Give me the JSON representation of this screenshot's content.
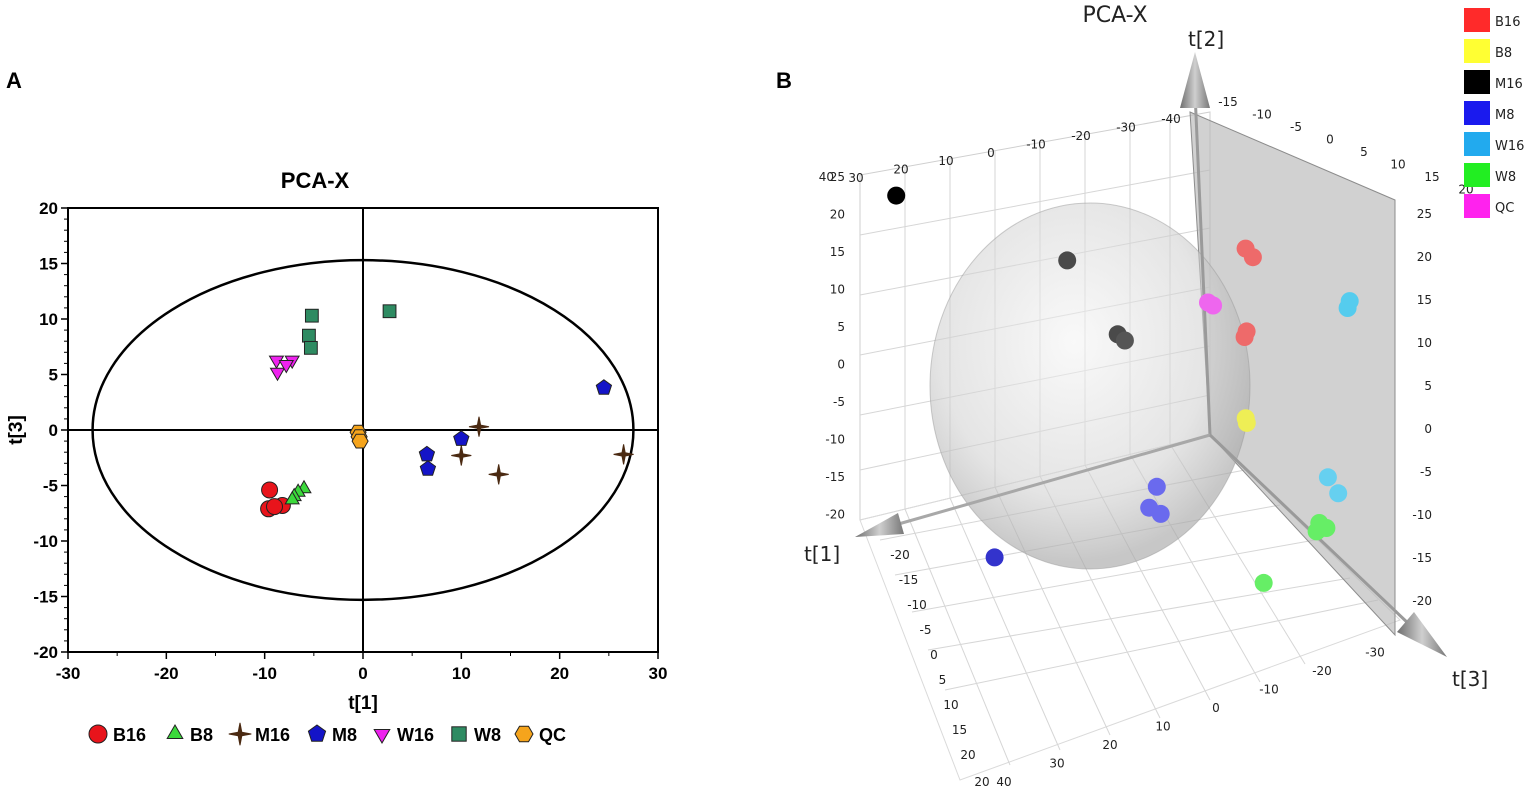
{
  "panels": {
    "a": {
      "letter": "A"
    },
    "b": {
      "letter": "B"
    }
  },
  "chart_data": [
    {
      "type": "scatter",
      "title": "PCA-X",
      "xlabel": "t[1]",
      "ylabel": "t[3]",
      "xlim": [
        -30,
        30
      ],
      "ylim": [
        -20,
        20
      ],
      "xticks": [
        "-30",
        "-20",
        "-10",
        "0",
        "10",
        "20",
        "30"
      ],
      "yticks": [
        "20",
        "15",
        "10",
        "5",
        "0",
        "-5",
        "-10",
        "-15",
        "-20"
      ],
      "ellipse": {
        "rx": 27.5,
        "ry": 15.3
      },
      "series": [
        {
          "name": "B16",
          "marker": "circle",
          "color": "#e8141b",
          "points": [
            [
              -9.5,
              -5.4
            ],
            [
              -8.2,
              -6.8
            ],
            [
              -9.6,
              -7.1
            ],
            [
              -9.0,
              -6.9
            ]
          ]
        },
        {
          "name": "B8",
          "marker": "triangle-up",
          "color": "#3bd93b",
          "points": [
            [
              -6.0,
              -5.3
            ],
            [
              -6.6,
              -5.6
            ],
            [
              -7.0,
              -6.0
            ],
            [
              -7.2,
              -6.3
            ]
          ]
        },
        {
          "name": "M16",
          "marker": "star4",
          "color": "#4b2a12",
          "points": [
            [
              11.8,
              0.3
            ],
            [
              10.0,
              -2.3
            ],
            [
              13.8,
              -4.0
            ],
            [
              26.5,
              -2.2
            ]
          ]
        },
        {
          "name": "M8",
          "marker": "pentagon",
          "color": "#1414c8",
          "points": [
            [
              24.5,
              3.8
            ],
            [
              10.0,
              -0.8
            ],
            [
              6.5,
              -2.2
            ],
            [
              6.6,
              -3.5
            ]
          ]
        },
        {
          "name": "W16",
          "marker": "triangle-down",
          "color": "#ee22ee",
          "points": [
            [
              -7.2,
              6.3
            ],
            [
              -8.8,
              6.3
            ],
            [
              -8.7,
              5.2
            ],
            [
              -7.8,
              5.9
            ]
          ]
        },
        {
          "name": "W8",
          "marker": "square",
          "color": "#2e8b62",
          "points": [
            [
              -5.2,
              10.3
            ],
            [
              -5.5,
              8.5
            ],
            [
              -5.3,
              7.4
            ],
            [
              2.7,
              10.7
            ]
          ]
        },
        {
          "name": "QC",
          "marker": "hexagon",
          "color": "#f5a41c",
          "points": [
            [
              -0.5,
              -0.2
            ],
            [
              -0.4,
              -0.6
            ],
            [
              -0.3,
              -1.0
            ]
          ]
        }
      ]
    },
    {
      "type": "scatter",
      "title": "PCA-X",
      "axis_labels": [
        "t[1]",
        "t[2]",
        "t[3]"
      ],
      "t2_top_ticks": [
        "30",
        "20",
        "10",
        "0",
        "-10",
        "-20",
        "-30",
        "-40"
      ],
      "t3_top_ticks": [
        "-15",
        "-10",
        "-5",
        "0",
        "5",
        "10",
        "15",
        "20"
      ],
      "t2_right_ticks": [
        "25",
        "20",
        "15",
        "10",
        "5",
        "0",
        "-5",
        "-10",
        "-15",
        "-20"
      ],
      "t2_left_ticks": [
        "25",
        "20",
        "15",
        "10",
        "5",
        "0",
        "-5",
        "-10",
        "-15",
        "-20"
      ],
      "t1_left_ticks": [
        "-20",
        "-15",
        "-10",
        "-5",
        "0",
        "5",
        "10",
        "15",
        "20"
      ],
      "t1_bottom_ticks": [
        "40",
        "30",
        "20",
        "10",
        "0",
        "-10",
        "-20",
        "-30"
      ],
      "left_top_extra": "40",
      "bottom_extra": "20",
      "legend": [
        {
          "name": "B16",
          "color": "#ff2a2a"
        },
        {
          "name": "B8",
          "color": "#ffff33"
        },
        {
          "name": "M16",
          "color": "#000000"
        },
        {
          "name": "M8",
          "color": "#1a1aee"
        },
        {
          "name": "W16",
          "color": "#22aaee"
        },
        {
          "name": "W8",
          "color": "#22ee22"
        },
        {
          "name": "QC",
          "color": "#ff22ee"
        }
      ],
      "points": [
        {
          "group": "M16",
          "color": "#000000",
          "t1": 21,
          "t2": 14,
          "t3": -24
        },
        {
          "group": "M16",
          "color": "#4a4a4a",
          "t1": 5,
          "t2": 8,
          "t3": -18
        },
        {
          "group": "M16",
          "color": "#4a4a4a",
          "t1": 2,
          "t2": 3,
          "t3": -14
        },
        {
          "group": "M16",
          "color": "#555555",
          "t1": 1.5,
          "t2": 2.6,
          "t3": -13.5
        },
        {
          "group": "B16",
          "color": "#ee6a6a",
          "t1": -8,
          "t2": 12,
          "t3": -4
        },
        {
          "group": "B16",
          "color": "#ee6a6a",
          "t1": -8.5,
          "t2": 11.4,
          "t3": -3.5
        },
        {
          "group": "B16",
          "color": "#ee6a6a",
          "t1": -6,
          "t2": 6,
          "t3": -2
        },
        {
          "group": "B16",
          "color": "#ee6a6a",
          "t1": -6.4,
          "t2": 6.3,
          "t3": -2.2
        },
        {
          "group": "QC",
          "color": "#ee66ee",
          "t1": -4,
          "t2": 7.8,
          "t3": -5.5
        },
        {
          "group": "QC",
          "color": "#ee66ee",
          "t1": -4.4,
          "t2": 7.6,
          "t3": -5.2
        },
        {
          "group": "W16",
          "color": "#55ccee",
          "t1": -16,
          "t2": 8,
          "t3": 2
        },
        {
          "group": "W16",
          "color": "#55ccee",
          "t1": -16.3,
          "t2": 8.5,
          "t3": 2
        },
        {
          "group": "W16",
          "color": "#66d0f0",
          "t1": -10,
          "t2": -3,
          "t3": 6
        },
        {
          "group": "W16",
          "color": "#66d0f0",
          "t1": -10.5,
          "t2": -4,
          "t3": 7
        },
        {
          "group": "B8",
          "color": "#eeee55",
          "t1": -6,
          "t2": -1,
          "t3": -3
        },
        {
          "group": "B8",
          "color": "#eeee55",
          "t1": -6.2,
          "t2": -1.5,
          "t3": -3.2
        },
        {
          "group": "M8",
          "color": "#6a6aee",
          "t1": 1,
          "t2": -8,
          "t3": -10
        },
        {
          "group": "M8",
          "color": "#6a6aee",
          "t1": 1.5,
          "t2": -10,
          "t3": -11
        },
        {
          "group": "M8",
          "color": "#6a6aee",
          "t1": 0.5,
          "t2": -10.5,
          "t3": -10.5
        },
        {
          "group": "M8",
          "color": "#3333cc",
          "t1": 16,
          "t2": -14,
          "t3": -18
        },
        {
          "group": "W8",
          "color": "#66ee66",
          "t1": -12,
          "t2": -9.5,
          "t3": 0
        },
        {
          "group": "W8",
          "color": "#66ee66",
          "t1": -12.5,
          "t2": -9.8,
          "t3": 0.5
        },
        {
          "group": "W8",
          "color": "#66ee66",
          "t1": -11.5,
          "t2": -10,
          "t3": 0.2
        },
        {
          "group": "W8",
          "color": "#66ee66",
          "t1": -5,
          "t2": -13,
          "t3": 0
        }
      ]
    }
  ]
}
